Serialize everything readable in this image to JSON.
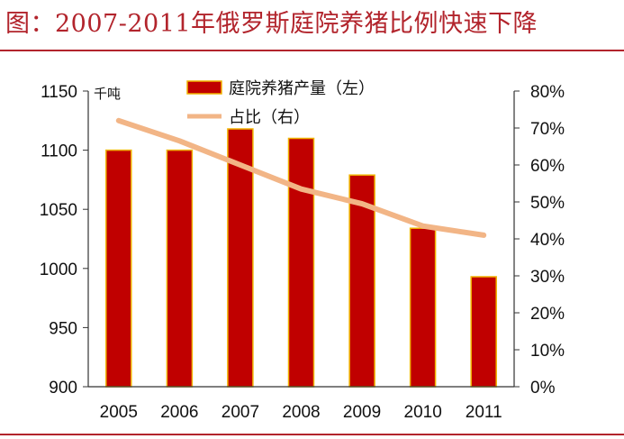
{
  "title": "图：2007-2011年俄罗斯庭院养猪比例快速下降",
  "colors": {
    "accent": "#b2242c",
    "bar": "#c00000",
    "bar_edge": "#f0b400",
    "line": "#f2b586"
  },
  "chart_data": {
    "type": "bar",
    "categories": [
      "2005",
      "2006",
      "2007",
      "2008",
      "2009",
      "2010",
      "2011"
    ],
    "series": [
      {
        "name": "庭院养猪产量（左）",
        "type": "bar",
        "axis": "left",
        "values": [
          1100,
          1100,
          1118,
          1110,
          1079,
          1034,
          993
        ]
      },
      {
        "name": "占比（右）",
        "type": "line",
        "axis": "right",
        "values": [
          0.72,
          0.665,
          0.6,
          0.535,
          0.495,
          0.435,
          0.41
        ]
      }
    ],
    "y_left": {
      "unit": "千吨",
      "ylim": [
        900,
        1150
      ],
      "ticks": [
        "900",
        "950",
        "1000",
        "1050",
        "1100",
        "1150"
      ]
    },
    "y_right": {
      "ylim": [
        0,
        0.8
      ],
      "ticks": [
        "0%",
        "10%",
        "20%",
        "30%",
        "40%",
        "50%",
        "60%",
        "70%",
        "80%"
      ]
    },
    "legend": "top-center",
    "grid": false
  }
}
